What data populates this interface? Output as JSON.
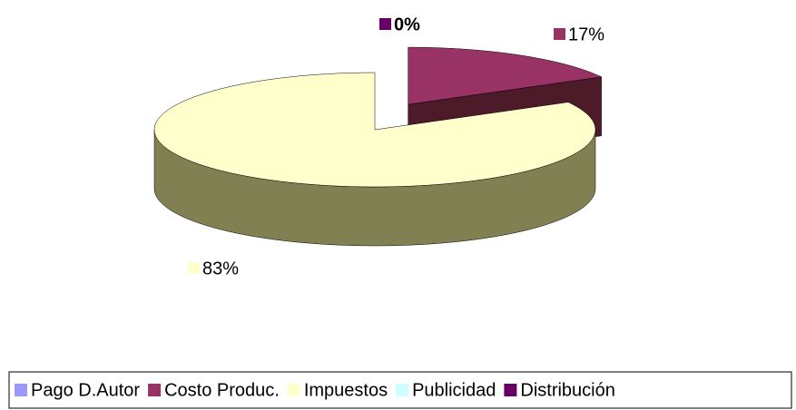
{
  "chart_data": {
    "type": "pie3d",
    "categories": [
      "Pago D.Autor",
      "Costo Produc.",
      "Impuestos",
      "Publicidad",
      "Distribución"
    ],
    "values": [
      0,
      17,
      83,
      0,
      0
    ],
    "value_labels": [
      null,
      "17%",
      "83%",
      null,
      "0%"
    ],
    "colors": [
      "#9999ff",
      "#993366",
      "#ffffcc",
      "#ccffff",
      "#660066"
    ],
    "exploded": [
      false,
      true,
      false,
      false,
      false
    ],
    "legend": "bottom"
  }
}
